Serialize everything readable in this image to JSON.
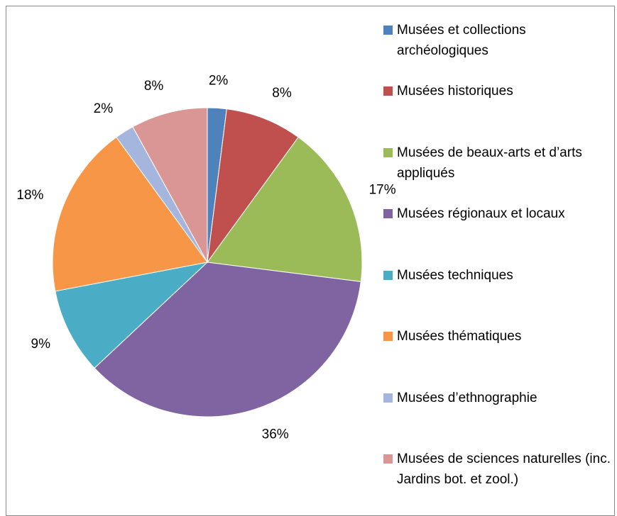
{
  "chart_data": {
    "type": "pie",
    "categories": [
      "Musées et collections archéologiques",
      "Musées historiques",
      "Musées de beaux-arts et d’arts appliqués",
      "Musées régionaux et locaux",
      "Musées techniques",
      "Musées thématiques",
      "Musées d’ethnographie",
      "Musées de sciences naturelles (inc. Jardins bot. et zool.)"
    ],
    "values": [
      2,
      8,
      17,
      36,
      9,
      18,
      2,
      8
    ],
    "value_labels": [
      "2%",
      "8%",
      "17%",
      "36%",
      "9%",
      "18%",
      "2%",
      "8%"
    ],
    "colors": [
      "#4f81bd",
      "#c0504d",
      "#9bbb59",
      "#8064a2",
      "#4bacc6",
      "#f79646",
      "#a4b6de",
      "#d99694"
    ],
    "legend": "right"
  }
}
